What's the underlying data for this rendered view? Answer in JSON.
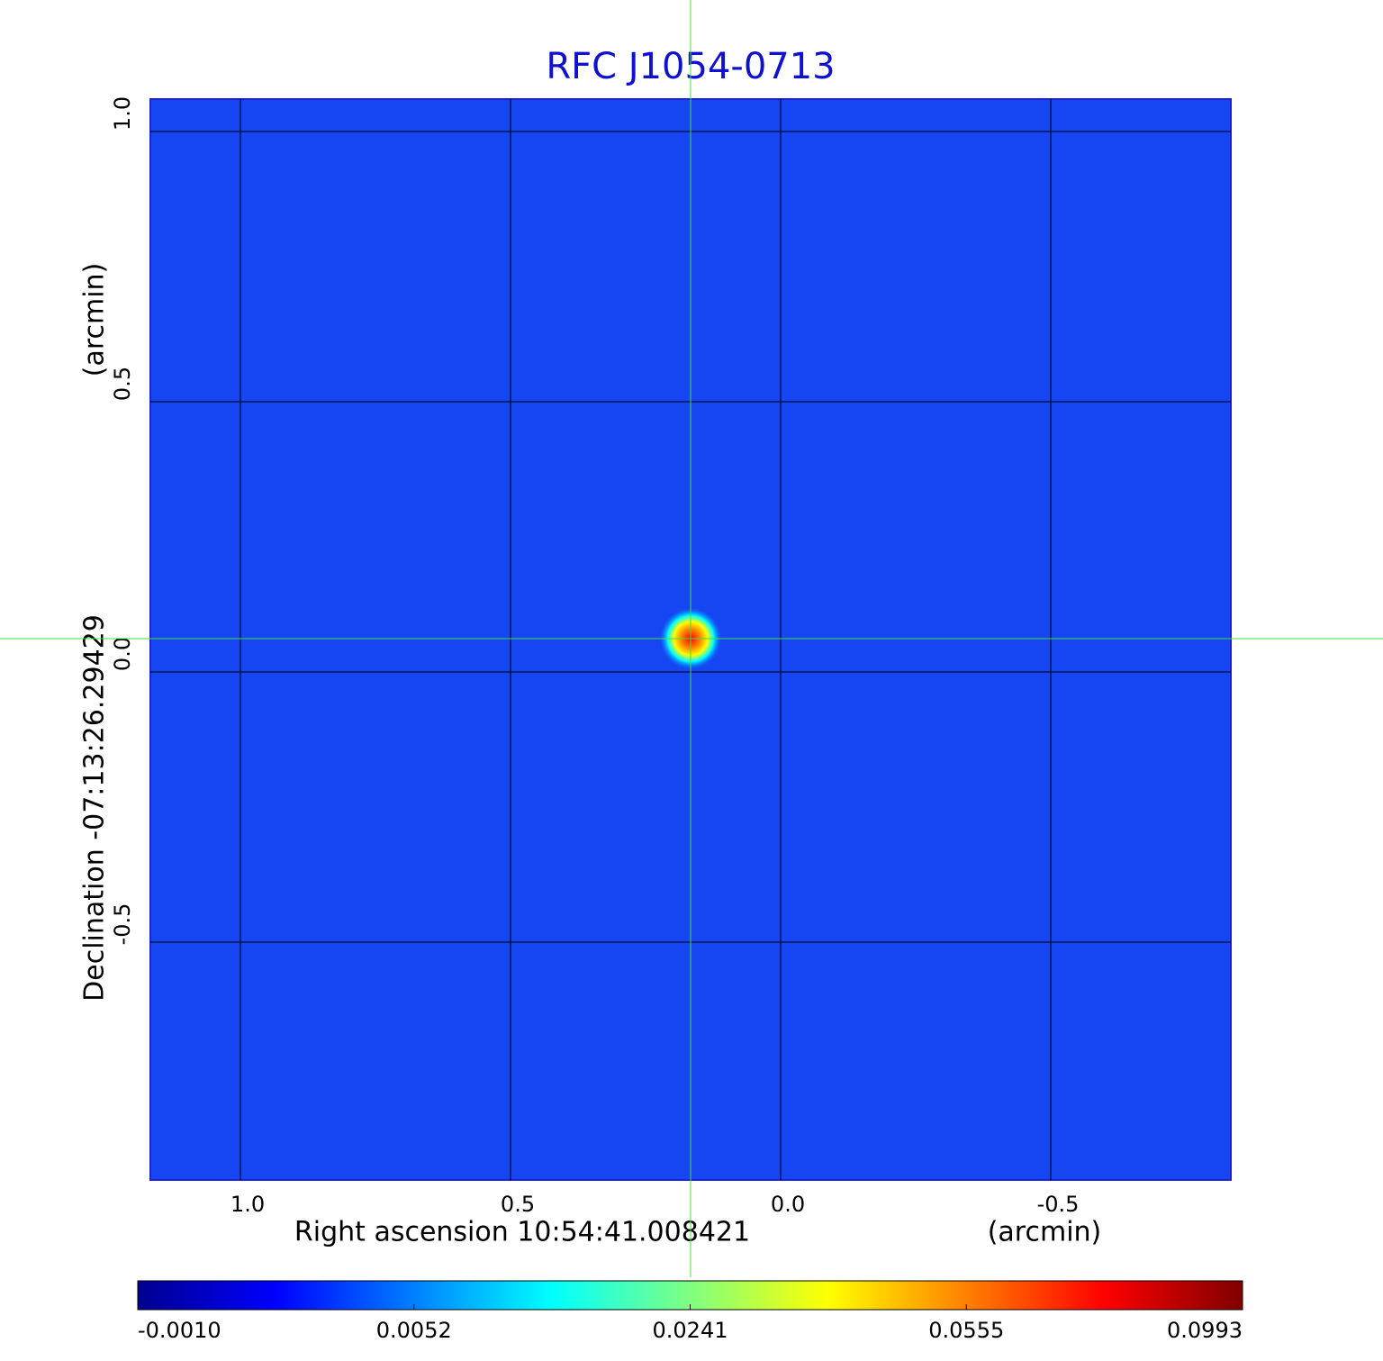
{
  "chart_data": {
    "type": "image",
    "title": "RFC J1054-0713",
    "x_label": "Right ascension  10:54:41.008421",
    "x_unit": "(arcmin)",
    "y_label": "Declination  -07:13:26.29429",
    "y_unit": "(arcmin)",
    "xlim": [
      1.1667,
      -0.8333
    ],
    "ylim": [
      -0.94,
      1.06
    ],
    "xticks": [
      {
        "value": 1,
        "label": "1.0"
      },
      0.5,
      {
        "value": 0,
        "label": "0.0"
      },
      -0.5
    ],
    "yticks": [
      {
        "value": 1,
        "label": "1.0"
      },
      0.5,
      {
        "value": 0,
        "label": "0.0"
      },
      -0.5
    ],
    "grid": true,
    "background_color": "#1646f2",
    "source": {
      "x": 0.1667,
      "y": 0.0617,
      "peak": 0.0993
    },
    "colorbar_ticks": [
      {
        "value": -0.001,
        "label": "-0.0010"
      },
      {
        "value": 0.0052,
        "label": "0.0052"
      },
      0.0241,
      0.0555,
      0.0993
    ],
    "colormap": [
      "#00008f",
      "#0000ff",
      "#0080ff",
      "#00ffff",
      "#80ff80",
      "#ffff00",
      "#ff8000",
      "#ff0000",
      "#800000"
    ]
  }
}
